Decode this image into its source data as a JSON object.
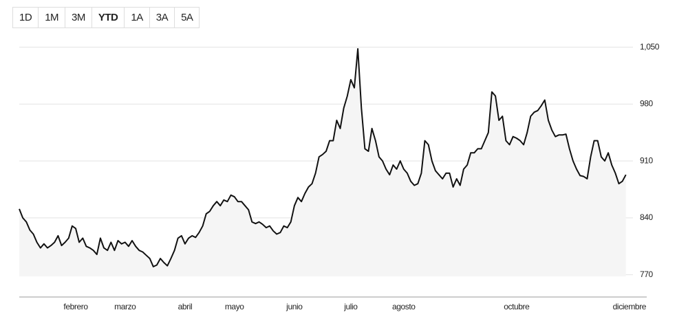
{
  "chart_data": {
    "type": "area-line",
    "buttons": [
      "1D",
      "1M",
      "3M",
      "YTD",
      "1A",
      "3A",
      "5A"
    ],
    "selected_button": 3,
    "values": [
      851,
      840,
      835,
      825,
      820,
      810,
      803,
      808,
      803,
      806,
      810,
      818,
      806,
      810,
      815,
      830,
      827,
      810,
      815,
      805,
      803,
      800,
      795,
      815,
      803,
      800,
      810,
      800,
      812,
      808,
      810,
      805,
      812,
      805,
      800,
      798,
      794,
      790,
      780,
      782,
      790,
      785,
      781,
      790,
      800,
      815,
      818,
      808,
      815,
      818,
      816,
      822,
      830,
      845,
      848,
      855,
      860,
      855,
      862,
      860,
      868,
      866,
      860,
      860,
      855,
      850,
      835,
      833,
      835,
      832,
      828,
      830,
      824,
      820,
      822,
      830,
      828,
      835,
      855,
      865,
      860,
      870,
      878,
      882,
      895,
      915,
      918,
      922,
      935,
      935,
      960,
      950,
      975,
      990,
      1010,
      1000,
      1048,
      975,
      925,
      922,
      950,
      935,
      915,
      910,
      900,
      893,
      905,
      900,
      910,
      900,
      895,
      885,
      880,
      882,
      895,
      935,
      930,
      910,
      898,
      893,
      888,
      895,
      895,
      878,
      888,
      880,
      900,
      905,
      920,
      920,
      925,
      925,
      935,
      945,
      995,
      990,
      960,
      965,
      935,
      930,
      940,
      938,
      935,
      930,
      945,
      965,
      970,
      972,
      978,
      985,
      960,
      948,
      940,
      942,
      942,
      943,
      925,
      910,
      900,
      892,
      891,
      888,
      915,
      935,
      935,
      915,
      910,
      920,
      905,
      895,
      882,
      885,
      893
    ],
    "color": "#111111",
    "ylim": [
      768,
      1070
    ],
    "yticks": [
      770,
      840,
      910,
      980,
      {
        "value": 1050,
        "label": "1,050"
      }
    ],
    "xlim": [
      0,
      174
    ],
    "xticks": [
      {
        "value": 16,
        "label": "febrero"
      },
      {
        "value": 30,
        "label": "marzo"
      },
      {
        "value": 47,
        "label": "abril"
      },
      {
        "value": 61,
        "label": "mayo"
      },
      {
        "value": 78,
        "label": "junio"
      },
      {
        "value": 94,
        "label": "julio"
      },
      {
        "value": 109,
        "label": "agosto"
      },
      {
        "value": 141,
        "label": "octubre"
      },
      {
        "value": 173,
        "label": "diciembre"
      }
    ],
    "grid": true
  }
}
